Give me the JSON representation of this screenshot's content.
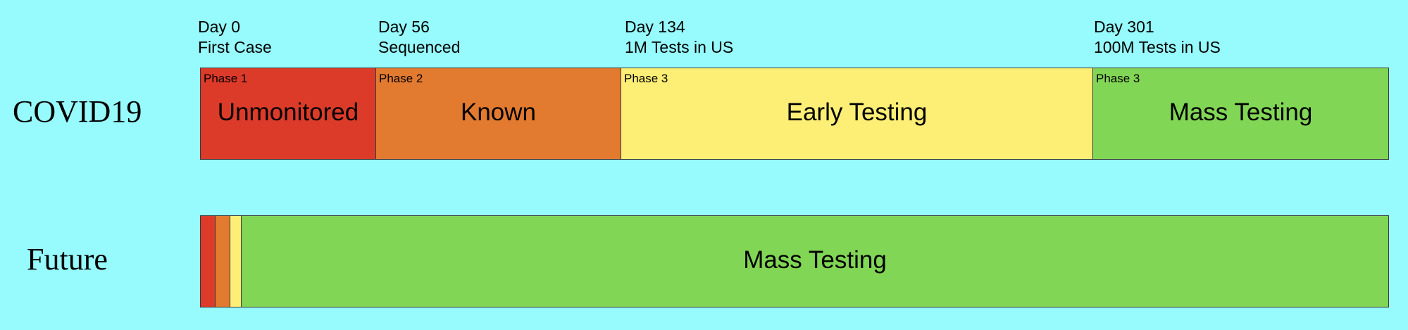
{
  "milestones": [
    {
      "day": "Day 0",
      "event": "First Case"
    },
    {
      "day": "Day 56",
      "event": "Sequenced"
    },
    {
      "day": "Day 134",
      "event": "1M Tests in US"
    },
    {
      "day": "Day 301",
      "event": "100M Tests in US"
    }
  ],
  "rows": {
    "covid": {
      "label": "COVID19",
      "phases": [
        {
          "tag": "Phase 1",
          "name": "Unmonitored",
          "color": "#DC3B2A"
        },
        {
          "tag": "Phase 2",
          "name": "Known",
          "color": "#E27A30"
        },
        {
          "tag": "Phase 3",
          "name": "Early Testing",
          "color": "#FDEE75"
        },
        {
          "tag": "Phase 3",
          "name": "Mass Testing",
          "color": "#82D655"
        }
      ]
    },
    "future": {
      "label": "Future",
      "phases": [
        {
          "name": "",
          "color": "#DC3B2A"
        },
        {
          "name": "",
          "color": "#E27A30"
        },
        {
          "name": "",
          "color": "#FDEE75"
        },
        {
          "name": "Mass Testing",
          "color": "#82D655"
        }
      ]
    }
  }
}
